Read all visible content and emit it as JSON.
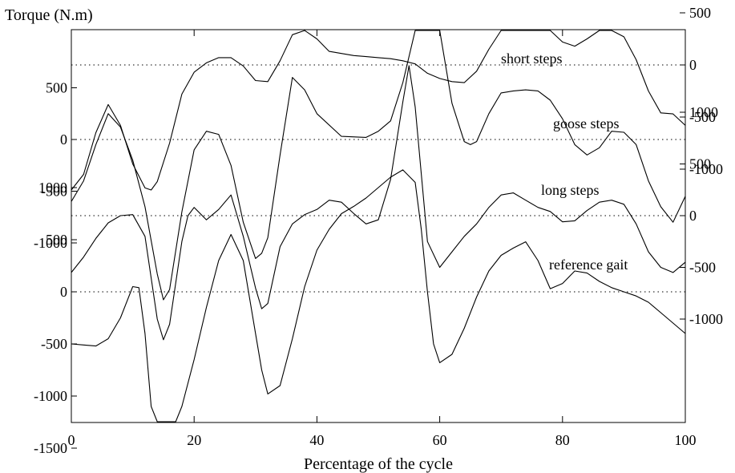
{
  "chart_data": {
    "type": "line",
    "ylabel": "Torque (N.m)",
    "xlabel": "Percentage of the cycle",
    "xlim": [
      0,
      100
    ],
    "x_ticks": [
      0,
      20,
      40,
      60,
      80,
      100
    ],
    "grid": false,
    "series": [
      {
        "name": "short steps",
        "axis_side": "right",
        "y_ticks": [
          500,
          0,
          -500,
          -1000
        ],
        "x": [
          0,
          2,
          4,
          6,
          8,
          10,
          12,
          13,
          14,
          16,
          18,
          20,
          22,
          24,
          26,
          28,
          30,
          32,
          34,
          36,
          38,
          40,
          42,
          44,
          46,
          48,
          50,
          52,
          54,
          56,
          58,
          60,
          62,
          64,
          66,
          68,
          70,
          72,
          74,
          76,
          78,
          80,
          82,
          84,
          86,
          88,
          90,
          92,
          94,
          96,
          98,
          100
        ],
        "y": [
          -1200,
          -1050,
          -650,
          -380,
          -580,
          -950,
          -1180,
          -1200,
          -1120,
          -750,
          -280,
          -70,
          20,
          70,
          70,
          -10,
          -150,
          -160,
          40,
          290,
          340,
          250,
          130,
          110,
          90,
          80,
          70,
          60,
          40,
          10,
          -80,
          -130,
          -160,
          -170,
          -60,
          150,
          380,
          530,
          600,
          610,
          480,
          220,
          180,
          250,
          380,
          410,
          270,
          50,
          -250,
          -460,
          -470,
          -580
        ]
      },
      {
        "name": "goose steps",
        "axis_side": "left",
        "y_ticks": [
          500,
          0,
          -500,
          -1000
        ],
        "x": [
          0,
          2,
          4,
          6,
          8,
          10,
          12,
          14,
          15,
          16,
          18,
          20,
          22,
          24,
          26,
          28,
          30,
          31,
          32,
          34,
          36,
          38,
          40,
          44,
          48,
          50,
          52,
          54,
          56,
          58,
          60,
          62,
          64,
          65,
          66,
          68,
          70,
          72,
          74,
          76,
          78,
          80,
          82,
          84,
          86,
          88,
          90,
          92,
          94,
          96,
          98,
          100
        ],
        "y": [
          -600,
          -400,
          -50,
          250,
          120,
          -200,
          -650,
          -1300,
          -1550,
          -1450,
          -700,
          -100,
          80,
          50,
          -250,
          -800,
          -1150,
          -1100,
          -950,
          -150,
          600,
          480,
          250,
          30,
          20,
          80,
          180,
          550,
          1100,
          1550,
          1200,
          350,
          -20,
          -50,
          -20,
          250,
          450,
          470,
          480,
          470,
          380,
          200,
          -50,
          -150,
          -80,
          80,
          70,
          -50,
          -400,
          -650,
          -800,
          -550
        ]
      },
      {
        "name": "long steps",
        "axis_side": "right",
        "y_ticks": [
          1000,
          500,
          0,
          -500,
          -1000
        ],
        "x": [
          0,
          2,
          4,
          6,
          8,
          10,
          12,
          14,
          15,
          16,
          18,
          19,
          20,
          22,
          24,
          26,
          28,
          30,
          31,
          32,
          34,
          36,
          38,
          40,
          42,
          44,
          46,
          48,
          50,
          52,
          54,
          55,
          56,
          58,
          60,
          62,
          64,
          66,
          68,
          70,
          72,
          74,
          76,
          78,
          80,
          82,
          84,
          86,
          88,
          90,
          92,
          94,
          96,
          98,
          100
        ],
        "y": [
          -550,
          -400,
          -220,
          -70,
          0,
          10,
          -200,
          -1000,
          -1200,
          -1050,
          -250,
          0,
          80,
          -40,
          60,
          200,
          -200,
          -700,
          -900,
          -850,
          -300,
          -80,
          10,
          60,
          150,
          130,
          20,
          -80,
          -40,
          350,
          1100,
          1450,
          1050,
          -250,
          -500,
          -350,
          -200,
          -80,
          80,
          200,
          220,
          150,
          80,
          40,
          -60,
          -50,
          50,
          130,
          150,
          110,
          -80,
          -350,
          -500,
          -550,
          -450
        ]
      },
      {
        "name": "reference gait",
        "axis_side": "left",
        "y_ticks": [
          1000,
          500,
          0,
          -500,
          -1000,
          -1500
        ],
        "x": [
          0,
          2,
          4,
          6,
          8,
          10,
          11,
          12,
          13,
          14,
          15,
          16,
          17,
          18,
          20,
          22,
          24,
          26,
          28,
          30,
          31,
          32,
          34,
          36,
          38,
          40,
          42,
          44,
          46,
          48,
          50,
          52,
          54,
          56,
          57,
          58,
          59,
          60,
          62,
          64,
          66,
          68,
          70,
          72,
          74,
          76,
          78,
          80,
          82,
          84,
          86,
          88,
          90,
          92,
          94,
          96,
          98,
          100
        ],
        "y": [
          -500,
          -510,
          -520,
          -450,
          -250,
          50,
          40,
          -400,
          -1100,
          -2100,
          -2550,
          -2300,
          -1600,
          -1100,
          -650,
          -150,
          300,
          550,
          300,
          -400,
          -750,
          -980,
          -900,
          -450,
          50,
          400,
          600,
          750,
          820,
          900,
          1000,
          1100,
          1170,
          1050,
          600,
          0,
          -500,
          -680,
          -600,
          -350,
          -50,
          200,
          350,
          420,
          480,
          300,
          30,
          80,
          200,
          180,
          100,
          40,
          0,
          -40,
          -100,
          -200,
          -300,
          -400
        ]
      }
    ]
  }
}
